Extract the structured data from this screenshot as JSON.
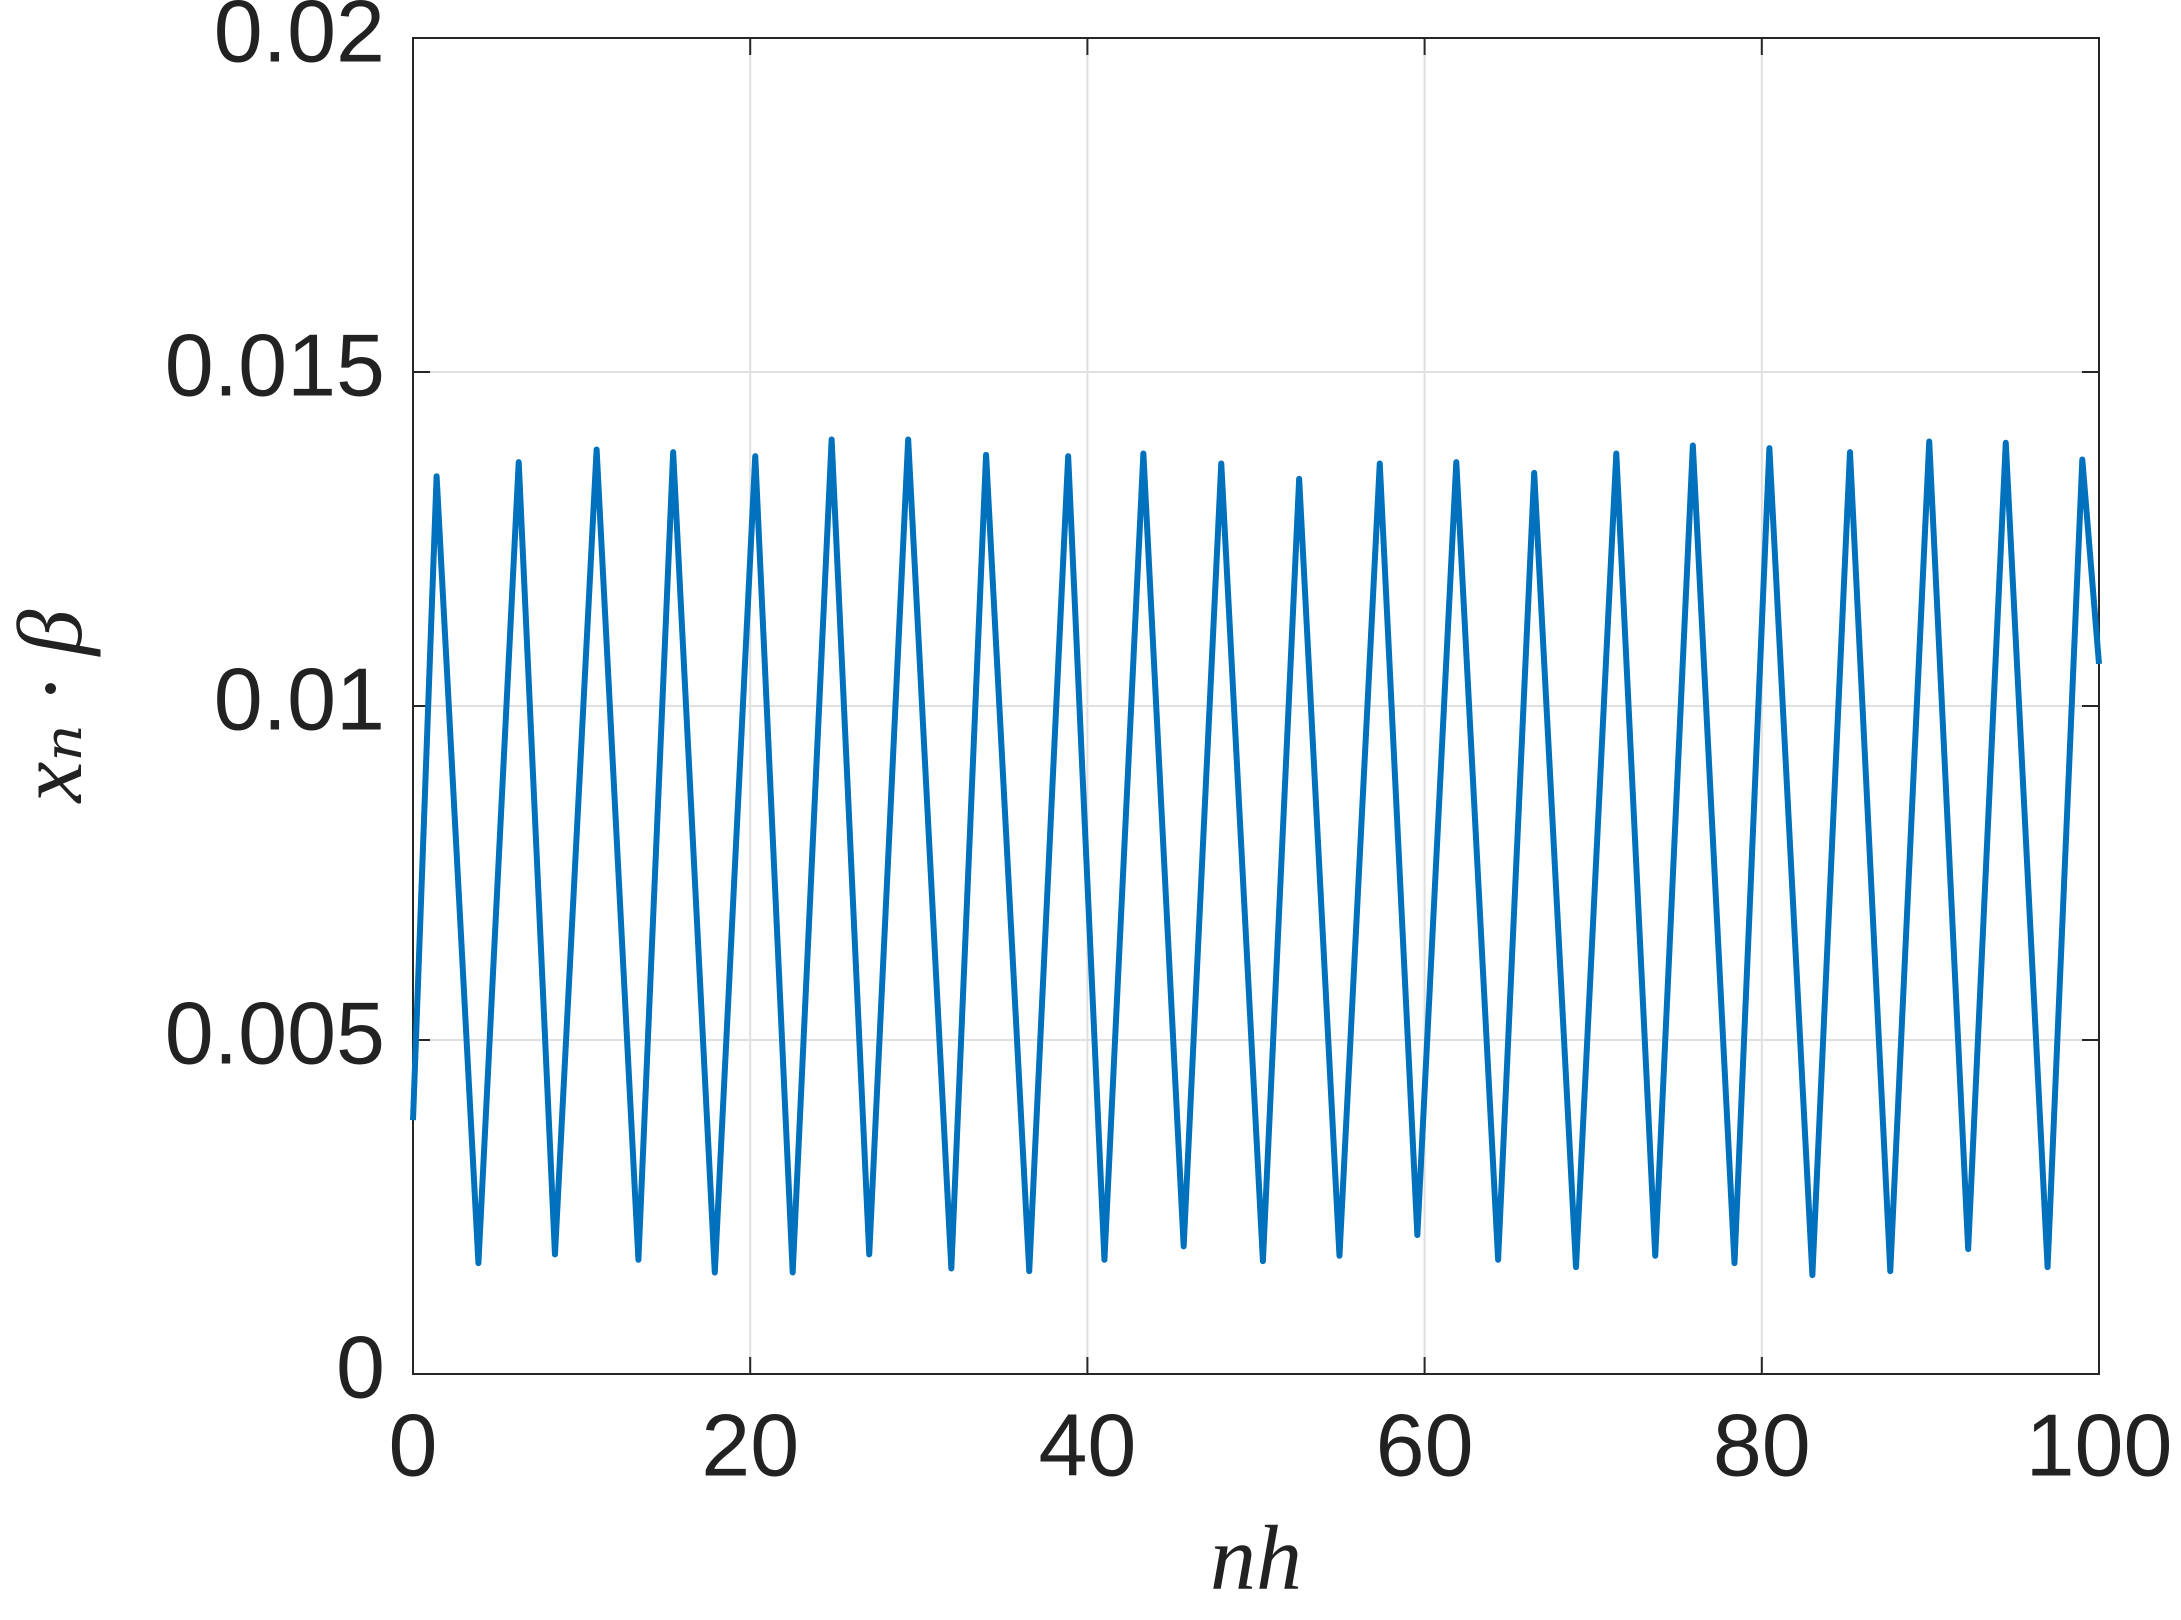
{
  "chart_data": {
    "type": "line",
    "xlabel": "nh",
    "ylabel": "xₙ · β",
    "xlim": [
      0,
      100
    ],
    "xticks": [
      0,
      20,
      40,
      60,
      80,
      100
    ],
    "ylim": [
      0,
      0.02
    ],
    "yticks": [
      0,
      0.005,
      0.01,
      0.015,
      0.02
    ],
    "grid": true,
    "series": [
      {
        "color": "#0072bd",
        "x": [
          0,
          1.4,
          3.88,
          6.27,
          8.42,
          10.89,
          13.37,
          15.43,
          17.9,
          20.3,
          22.52,
          24.83,
          27.06,
          29.37,
          31.93,
          33.99,
          36.55,
          38.86,
          41.01,
          43.32,
          45.71,
          47.94,
          50.41,
          52.56,
          54.95,
          57.34,
          59.57,
          61.88,
          64.36,
          66.5,
          68.98,
          71.37,
          73.68,
          75.91,
          78.38,
          80.45,
          83.0,
          85.23,
          87.62,
          89.93,
          92.24,
          94.47,
          96.95,
          99.01,
          100
        ],
        "values": [
          0.0038,
          0.01344,
          0.00166,
          0.01365,
          0.00179,
          0.01384,
          0.00171,
          0.0138,
          0.00152,
          0.01374,
          0.00152,
          0.01399,
          0.00179,
          0.01399,
          0.00158,
          0.01376,
          0.00154,
          0.01374,
          0.00171,
          0.01378,
          0.00191,
          0.01363,
          0.00169,
          0.0134,
          0.00177,
          0.01363,
          0.00208,
          0.01365,
          0.00171,
          0.01349,
          0.0016,
          0.01378,
          0.00177,
          0.0139,
          0.00166,
          0.01386,
          0.00148,
          0.0138,
          0.00154,
          0.01396,
          0.00187,
          0.01394,
          0.0016,
          0.01369,
          0.01063
        ]
      }
    ]
  }
}
